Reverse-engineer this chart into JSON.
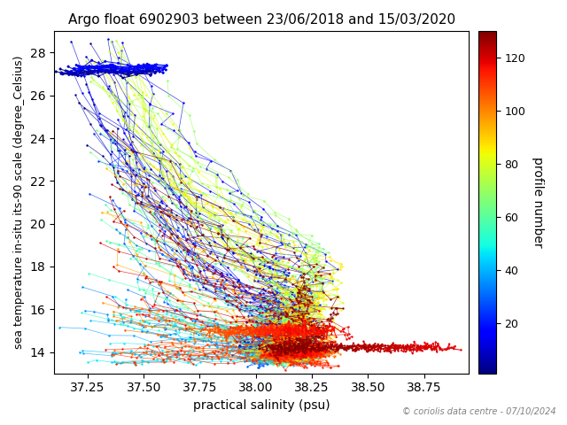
{
  "title": "Argo float 6902903 between 23/06/2018 and 15/03/2020",
  "xlabel": "practical salinity (psu)",
  "ylabel": "sea temperature in-situ its-90 scale (degree_Celsius)",
  "cbar_label": "profile number",
  "copyright": "© coriolis data centre - 07/10/2024",
  "xlim": [
    37.1,
    38.95
  ],
  "ylim": [
    13.0,
    29.0
  ],
  "xticks": [
    37.25,
    37.5,
    37.75,
    38.0,
    38.25,
    38.5,
    38.75
  ],
  "yticks": [
    14,
    16,
    18,
    20,
    22,
    24,
    26,
    28
  ],
  "cbar_ticks": [
    20,
    40,
    60,
    80,
    100,
    120
  ],
  "n_profiles": 130,
  "colormap": "jet",
  "seed": 7
}
